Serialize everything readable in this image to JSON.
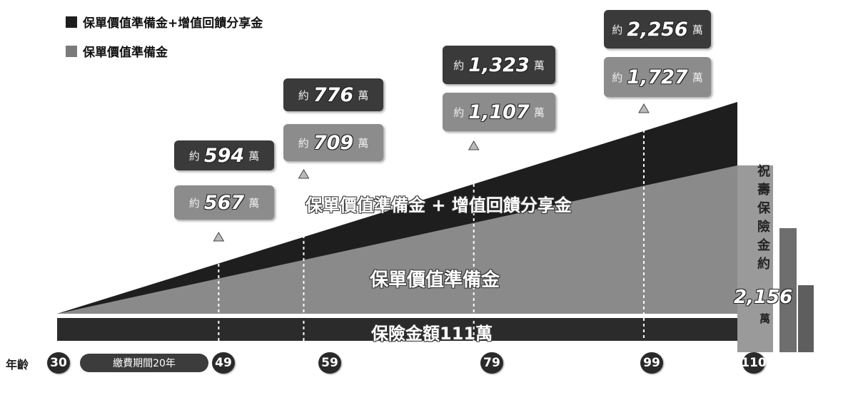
{
  "legend": {
    "items": [
      {
        "label": "保單價值準備金+增值回饋分享金",
        "color": "#1e1e1e"
      },
      {
        "label": "保單價值準備金",
        "color": "#7a7a7a"
      }
    ]
  },
  "callout_prefix": "約",
  "callout_suffix": "萬",
  "age_label": "年齡",
  "pay_term": "繳費期間20年",
  "band_labels": {
    "top": "保單價值準備金 + 增值回饋分享金",
    "middle": "保單價值準備金",
    "bottom": "保險金額111萬"
  },
  "side_text": "祝壽保險金約",
  "side_value": "2,156",
  "side_unit": "萬",
  "chart_data": {
    "type": "area",
    "x": [
      30,
      49,
      59,
      79,
      99,
      110
    ],
    "tick_labels": [
      "30",
      "49",
      "59",
      "79",
      "99",
      "110"
    ],
    "series": [
      {
        "name": "保單價值準備金+增值回饋分享金",
        "color": "#1e1e1e",
        "points": [
          {
            "age": 49,
            "value": 594,
            "label": "594"
          },
          {
            "age": 59,
            "value": 776,
            "label": "776"
          },
          {
            "age": 79,
            "value": 1323,
            "label": "1,323"
          },
          {
            "age": 99,
            "value": 2256,
            "label": "2,256"
          }
        ]
      },
      {
        "name": "保單價值準備金",
        "color": "#7a7a7a",
        "points": [
          {
            "age": 49,
            "value": 567,
            "label": "567"
          },
          {
            "age": 59,
            "value": 709,
            "label": "709"
          },
          {
            "age": 79,
            "value": 1107,
            "label": "1,107"
          },
          {
            "age": 99,
            "value": 1727,
            "label": "1,727"
          }
        ]
      }
    ],
    "sum_insured": 111,
    "maturity_benefit": 2156
  }
}
